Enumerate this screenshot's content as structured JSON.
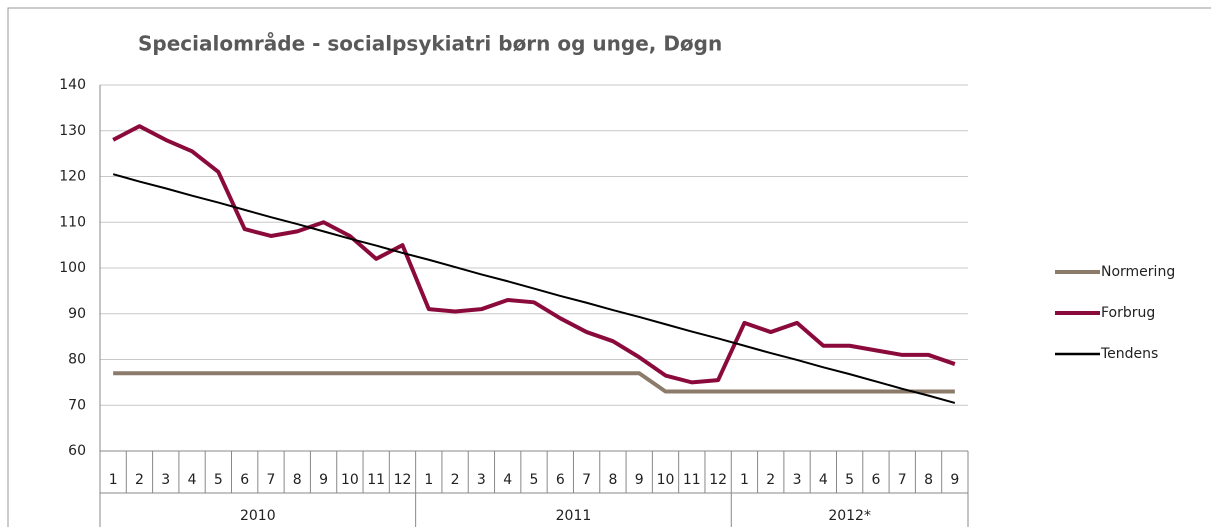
{
  "chart_data": {
    "type": "line",
    "title": "Specialområde - socialpsykiatri børn og unge, Døgn",
    "category_groups": [
      {
        "name": "2010",
        "categories": [
          "1",
          "2",
          "3",
          "4",
          "5",
          "6",
          "7",
          "8",
          "9",
          "10",
          "11",
          "12"
        ]
      },
      {
        "name": "2011",
        "categories": [
          "1",
          "2",
          "3",
          "4",
          "5",
          "6",
          "7",
          "8",
          "9",
          "10",
          "11",
          "12"
        ]
      },
      {
        "name": "2012*",
        "categories": [
          "1",
          "2",
          "3",
          "4",
          "5",
          "6",
          "7",
          "8",
          "9"
        ]
      }
    ],
    "series": [
      {
        "name": "Normering",
        "color": "#8c7b6b",
        "values": [
          77,
          77,
          77,
          77,
          77,
          77,
          77,
          77,
          77,
          77,
          77,
          77,
          77,
          77,
          77,
          77,
          77,
          77,
          77,
          77,
          77,
          73,
          73,
          73,
          73,
          73,
          73,
          73,
          73,
          73,
          73,
          73,
          73
        ]
      },
      {
        "name": "Forbrug",
        "color": "#8b0a3c",
        "values": [
          128,
          131,
          128,
          125.5,
          121,
          108.5,
          107,
          108,
          110,
          107,
          102,
          105,
          91,
          90.5,
          91,
          93,
          92.5,
          89,
          86,
          84,
          80.5,
          76.5,
          75,
          75.5,
          88,
          86,
          88,
          83,
          83,
          82,
          81,
          81,
          79
        ]
      },
      {
        "name": "Tendens",
        "color": "#000000",
        "values": [
          120.5,
          118.9,
          117.4,
          115.8,
          114.3,
          112.7,
          111.1,
          109.6,
          108.0,
          106.4,
          104.9,
          103.3,
          101.8,
          100.2,
          98.6,
          97.1,
          95.5,
          93.9,
          92.4,
          90.8,
          89.3,
          87.7,
          86.1,
          84.6,
          83.0,
          81.4,
          79.9,
          78.3,
          76.8,
          75.2,
          73.6,
          72.1,
          70.5
        ]
      }
    ],
    "ylim": [
      60,
      140
    ],
    "yticks": [
      60,
      70,
      80,
      90,
      100,
      110,
      120,
      130,
      140
    ],
    "grid": true,
    "legend": "right"
  }
}
